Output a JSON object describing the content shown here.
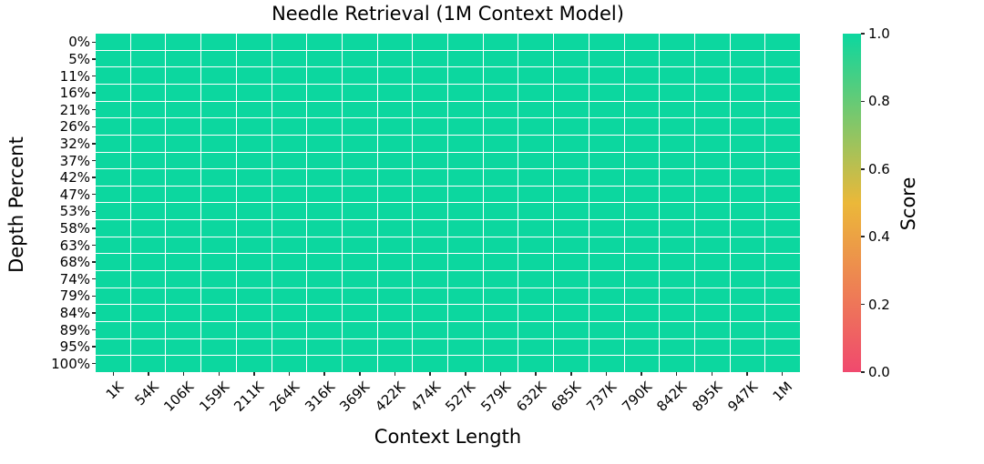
{
  "chart_data": {
    "type": "heatmap",
    "title": "Needle Retrieval (1M Context Model)",
    "xlabel": "Context Length",
    "ylabel": "Depth Percent",
    "x_categories": [
      "1K",
      "54K",
      "106K",
      "159K",
      "211K",
      "264K",
      "316K",
      "369K",
      "422K",
      "474K",
      "527K",
      "579K",
      "632K",
      "685K",
      "737K",
      "790K",
      "842K",
      "895K",
      "947K",
      "1M"
    ],
    "y_categories": [
      "0%",
      "5%",
      "11%",
      "16%",
      "21%",
      "26%",
      "32%",
      "37%",
      "42%",
      "47%",
      "53%",
      "58%",
      "63%",
      "68%",
      "74%",
      "79%",
      "84%",
      "89%",
      "95%",
      "100%"
    ],
    "rows": 20,
    "cols": 20,
    "uniform_value": 1.0,
    "grid_line_color": "#ffffff",
    "colorbar": {
      "label": "Score",
      "min": 0.0,
      "max": 1.0,
      "tick_values": [
        0.0,
        0.2,
        0.4,
        0.6,
        0.8,
        1.0
      ],
      "tick_labels": [
        "0.0",
        "0.2",
        "0.4",
        "0.6",
        "0.8",
        "1.0"
      ],
      "color_stops": [
        {
          "value": 0.0,
          "color": "#F0496E"
        },
        {
          "value": 0.5,
          "color": "#EBB839"
        },
        {
          "value": 1.0,
          "color": "#0CD79F"
        }
      ]
    }
  }
}
